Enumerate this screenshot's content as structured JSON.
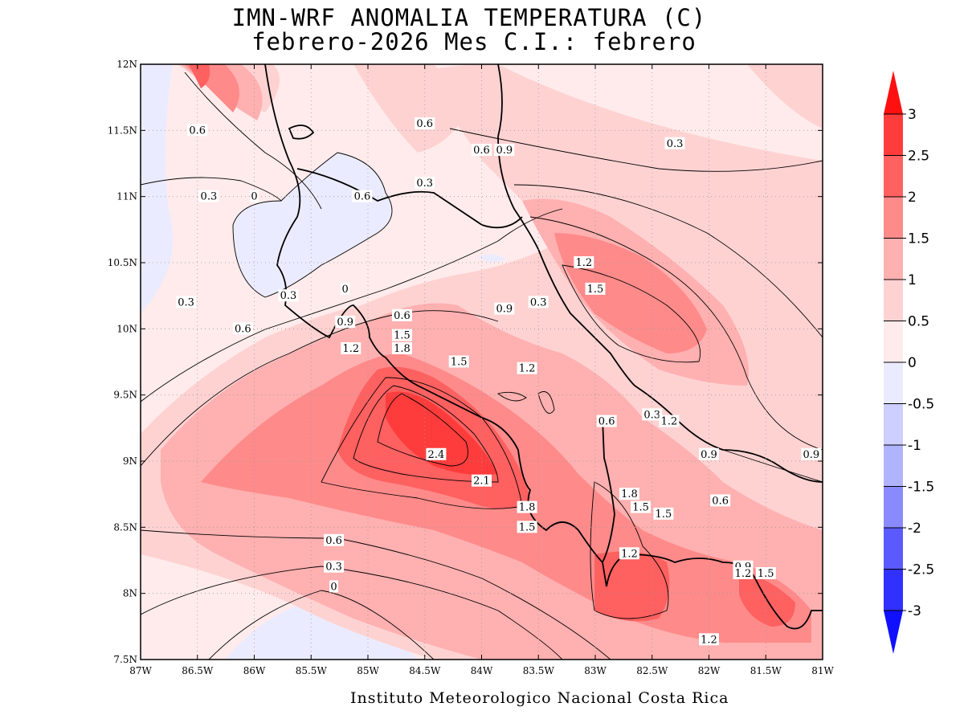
{
  "title": {
    "line1": "IMN-WRF  ANOMALIA TEMPERATURA (C)",
    "line2": "febrero-2026 Mes C.I.: febrero"
  },
  "footer": "Instituto Meteorologico Nacional Costa Rica",
  "map_data": {
    "type": "filled-contour-map",
    "variable": "Temperature anomaly (C)",
    "lon_range": [
      -87,
      -81
    ],
    "lat_range": [
      7.5,
      12
    ],
    "grid": "dotted",
    "x_ticks": [
      "87W",
      "86.5W",
      "86W",
      "85.5W",
      "85W",
      "84.5W",
      "84W",
      "83.5W",
      "83W",
      "82.5W",
      "82W",
      "81.5W",
      "81W"
    ],
    "y_ticks": [
      "12N",
      "11.5N",
      "11N",
      "10.5N",
      "10N",
      "9.5N",
      "9N",
      "8.5N",
      "8N",
      "7.5N"
    ],
    "colorbar": {
      "labels": [
        "3",
        "2.5",
        "2",
        "1.5",
        "1",
        "0.5",
        "0",
        "-0.5",
        "-1",
        "-1.5",
        "-2",
        "-2.5",
        "-3"
      ],
      "colors": [
        "#ff1010",
        "#ff3c3c",
        "#ff6060",
        "#ff8a8a",
        "#ffb0b0",
        "#ffd2d2",
        "#ffebeb",
        "#ebebff",
        "#cccfff",
        "#b0b4ff",
        "#8a8aff",
        "#5a5aff",
        "#3030ff",
        "#1010ff"
      ]
    },
    "contour_labels": [
      {
        "text": "0.6",
        "lon": -85.05,
        "lat": 11.0
      },
      {
        "text": "0.6",
        "lon": -84.5,
        "lat": 11.55
      },
      {
        "text": "0.6",
        "lon": -86.5,
        "lat": 11.5
      },
      {
        "text": "0.3",
        "lon": -86.4,
        "lat": 11.0
      },
      {
        "text": "0",
        "lon": -86.0,
        "lat": 11.0
      },
      {
        "text": "0.6",
        "lon": -84.0,
        "lat": 11.35
      },
      {
        "text": "0.9",
        "lon": -83.8,
        "lat": 11.35
      },
      {
        "text": "0.3",
        "lon": -82.3,
        "lat": 11.4
      },
      {
        "text": "0.3",
        "lon": -84.5,
        "lat": 11.1
      },
      {
        "text": "1.2",
        "lon": -83.1,
        "lat": 10.5
      },
      {
        "text": "1.5",
        "lon": -83.0,
        "lat": 10.3
      },
      {
        "text": "0.3",
        "lon": -85.7,
        "lat": 10.25
      },
      {
        "text": "0",
        "lon": -85.2,
        "lat": 10.3
      },
      {
        "text": "0.3",
        "lon": -86.6,
        "lat": 10.2
      },
      {
        "text": "0.6",
        "lon": -86.1,
        "lat": 10.0
      },
      {
        "text": "0.9",
        "lon": -85.2,
        "lat": 10.05
      },
      {
        "text": "0.6",
        "lon": -84.7,
        "lat": 10.1
      },
      {
        "text": "0.9",
        "lon": -83.8,
        "lat": 10.15
      },
      {
        "text": "0.3",
        "lon": -83.5,
        "lat": 10.2
      },
      {
        "text": "1.2",
        "lon": -85.15,
        "lat": 9.85
      },
      {
        "text": "1.8",
        "lon": -84.7,
        "lat": 9.85
      },
      {
        "text": "1.5",
        "lon": -84.7,
        "lat": 9.95
      },
      {
        "text": "1.5",
        "lon": -84.2,
        "lat": 9.75
      },
      {
        "text": "1.2",
        "lon": -83.6,
        "lat": 9.7
      },
      {
        "text": "0.6",
        "lon": -82.9,
        "lat": 9.3
      },
      {
        "text": "0.3",
        "lon": -82.5,
        "lat": 9.35
      },
      {
        "text": "1.2",
        "lon": -82.35,
        "lat": 9.3
      },
      {
        "text": "2.4",
        "lon": -84.4,
        "lat": 9.05
      },
      {
        "text": "2.1",
        "lon": -84.0,
        "lat": 8.85
      },
      {
        "text": "1.8",
        "lon": -83.6,
        "lat": 8.65
      },
      {
        "text": "1.5",
        "lon": -83.6,
        "lat": 8.5
      },
      {
        "text": "1.8",
        "lon": -82.7,
        "lat": 8.75
      },
      {
        "text": "1.5",
        "lon": -82.6,
        "lat": 8.65
      },
      {
        "text": "1.5",
        "lon": -82.4,
        "lat": 8.6
      },
      {
        "text": "1.2",
        "lon": -82.7,
        "lat": 8.3
      },
      {
        "text": "0.9",
        "lon": -82.0,
        "lat": 9.05
      },
      {
        "text": "0.9",
        "lon": -81.1,
        "lat": 9.05
      },
      {
        "text": "0.6",
        "lon": -81.9,
        "lat": 8.7
      },
      {
        "text": "0.6",
        "lon": -85.3,
        "lat": 8.4
      },
      {
        "text": "0.3",
        "lon": -85.3,
        "lat": 8.2
      },
      {
        "text": "0",
        "lon": -85.3,
        "lat": 8.05
      },
      {
        "text": "0.9",
        "lon": -81.7,
        "lat": 8.2
      },
      {
        "text": "1.2",
        "lon": -81.7,
        "lat": 8.15
      },
      {
        "text": "1.5",
        "lon": -81.5,
        "lat": 8.15
      },
      {
        "text": "1.2",
        "lon": -82.0,
        "lat": 7.65
      }
    ]
  }
}
